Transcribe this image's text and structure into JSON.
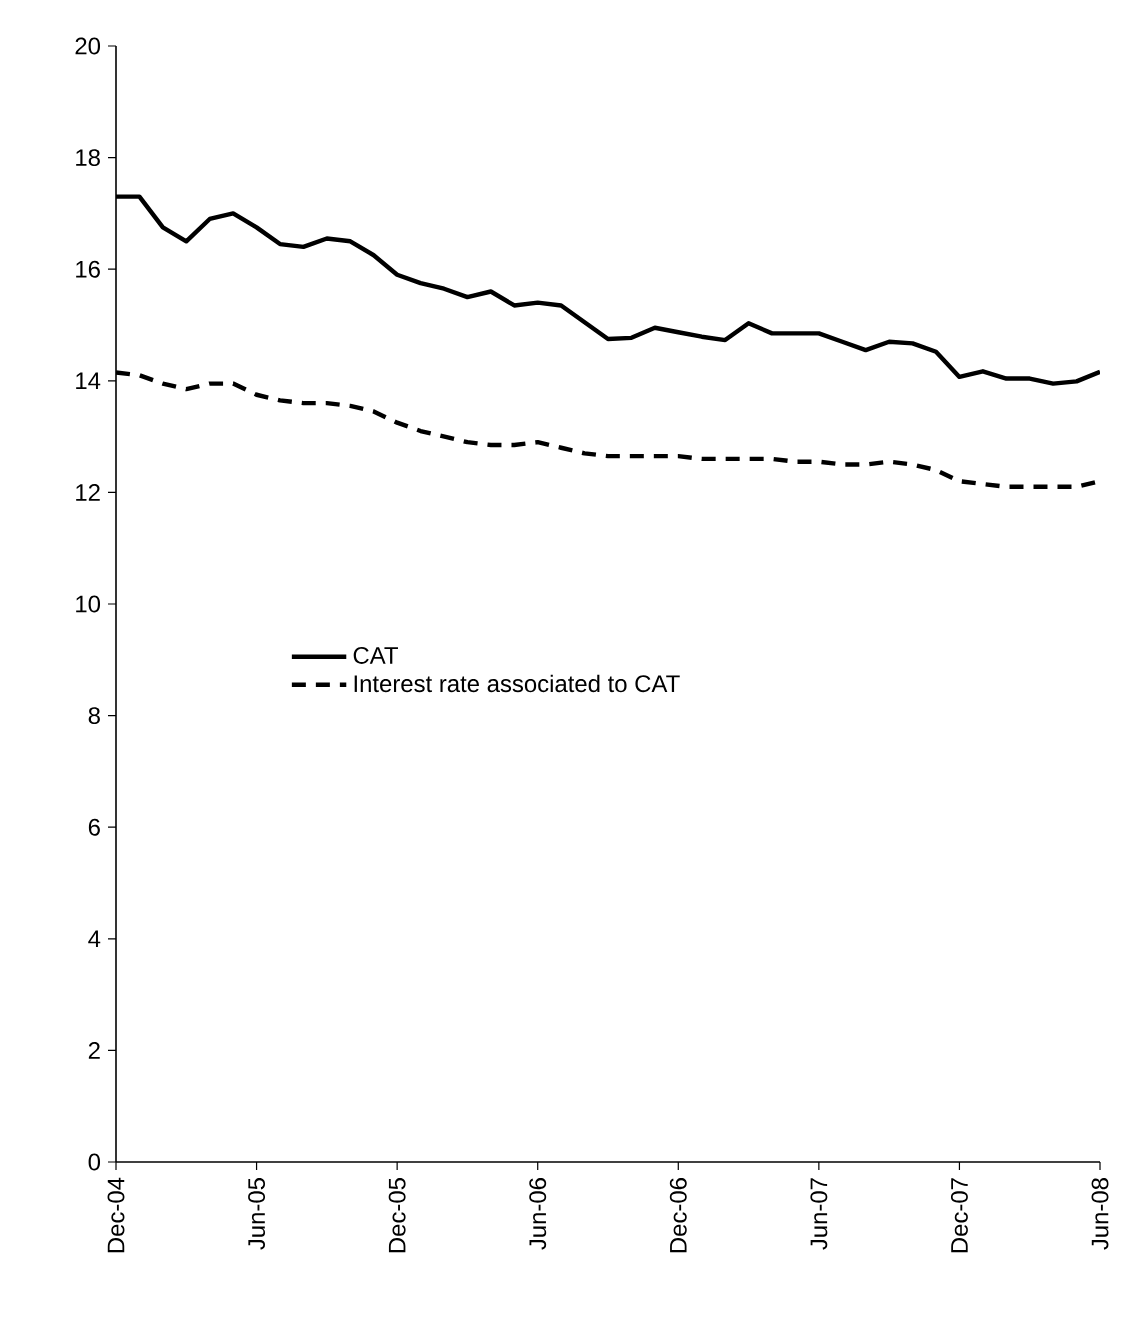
{
  "chart_data": {
    "type": "line",
    "x": [
      "2004-12",
      "2005-01",
      "2005-02",
      "2005-03",
      "2005-04",
      "2005-05",
      "2005-06",
      "2005-07",
      "2005-08",
      "2005-09",
      "2005-10",
      "2005-11",
      "2005-12",
      "2006-01",
      "2006-02",
      "2006-03",
      "2006-04",
      "2006-05",
      "2006-06",
      "2006-07",
      "2006-08",
      "2006-09",
      "2006-10",
      "2006-11",
      "2006-12",
      "2007-01",
      "2007-02",
      "2007-03",
      "2007-04",
      "2007-05",
      "2007-06",
      "2007-07",
      "2007-08",
      "2007-09",
      "2007-10",
      "2007-11",
      "2007-12",
      "2008-01",
      "2008-02",
      "2008-03",
      "2008-04",
      "2008-05",
      "2008-06"
    ],
    "series": [
      {
        "name": "CAT",
        "color": "#000000",
        "line_style": "solid",
        "values": [
          17.3,
          17.3,
          16.75,
          16.5,
          16.9,
          17.0,
          16.75,
          16.45,
          16.4,
          16.55,
          16.5,
          16.25,
          15.9,
          15.75,
          15.65,
          15.5,
          15.6,
          15.35,
          15.4,
          15.35,
          15.05,
          14.75,
          14.77,
          14.95,
          14.87,
          14.79,
          14.73,
          15.03,
          14.85,
          14.85,
          14.85,
          14.7,
          14.55,
          14.7,
          14.67,
          14.52,
          14.07,
          14.17,
          14.04,
          14.04,
          13.95,
          13.99,
          14.16
        ]
      },
      {
        "name": "Interest rate associated to CAT",
        "color": "#000000",
        "line_style": "dashed",
        "values": [
          14.15,
          14.1,
          13.95,
          13.85,
          13.95,
          13.95,
          13.75,
          13.65,
          13.6,
          13.6,
          13.55,
          13.45,
          13.25,
          13.1,
          13.0,
          12.9,
          12.85,
          12.85,
          12.9,
          12.8,
          12.7,
          12.65,
          12.65,
          12.65,
          12.65,
          12.6,
          12.6,
          12.6,
          12.6,
          12.55,
          12.55,
          12.5,
          12.5,
          12.55,
          12.5,
          12.4,
          12.2,
          12.15,
          12.1,
          12.1,
          12.1,
          12.1,
          12.2
        ]
      }
    ],
    "xlim": [
      "2004-12",
      "2008-06"
    ],
    "xticks": [
      {
        "value": "2004-12",
        "label": "Dec-04"
      },
      {
        "value": "2005-06",
        "label": "Jun-05"
      },
      {
        "value": "2005-12",
        "label": "Dec-05"
      },
      {
        "value": "2006-06",
        "label": "Jun-06"
      },
      {
        "value": "2006-12",
        "label": "Dec-06"
      },
      {
        "value": "2007-06",
        "label": "Jun-07"
      },
      {
        "value": "2007-12",
        "label": "Dec-07"
      },
      {
        "value": "2008-06",
        "label": "Jun-08"
      }
    ],
    "ylim": [
      0,
      20
    ],
    "yticks": [
      0,
      2,
      4,
      6,
      8,
      10,
      12,
      14,
      16,
      18,
      20
    ],
    "legend": "center",
    "grid": false
  }
}
